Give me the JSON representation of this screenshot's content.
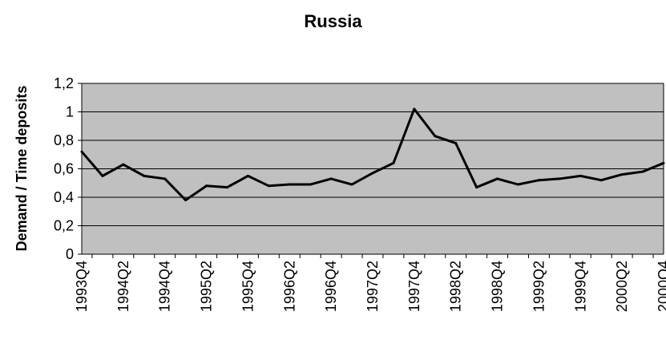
{
  "chart_data": {
    "type": "line",
    "title": "Russia",
    "xlabel": "",
    "ylabel": "Demand / Time deposits",
    "ylim": [
      0,
      1.2
    ],
    "yticks": [
      "0",
      "0,2",
      "0,4",
      "0,6",
      "0,8",
      "1",
      "1,2"
    ],
    "grid": true,
    "legend": "none",
    "colors": {
      "plot_bg": "#c0c0c0",
      "line": "#000000",
      "grid": "#000000"
    },
    "x": [
      "1993Q4",
      "1994Q1",
      "1994Q2",
      "1994Q3",
      "1994Q4",
      "1995Q1",
      "1995Q2",
      "1995Q3",
      "1995Q4",
      "1996Q1",
      "1996Q2",
      "1996Q3",
      "1996Q4",
      "1997Q1",
      "1997Q2",
      "1997Q3",
      "1997Q4",
      "1998Q1",
      "1998Q2",
      "1998Q3",
      "1998Q4",
      "1999Q1",
      "1999Q2",
      "1999Q3",
      "1999Q4",
      "2000Q1",
      "2000Q2",
      "2000Q3",
      "2000Q4"
    ],
    "xtick_labels": [
      "1993Q4",
      "1994Q2",
      "1994Q4",
      "1995Q2",
      "1995Q4",
      "1996Q2",
      "1996Q4",
      "1997Q2",
      "1997Q4",
      "1998Q2",
      "1998Q4",
      "1999Q2",
      "1999Q4",
      "2000Q2",
      "2000Q4"
    ],
    "series": [
      {
        "values": [
          0.72,
          0.55,
          0.63,
          0.55,
          0.53,
          0.38,
          0.48,
          0.47,
          0.55,
          0.48,
          0.49,
          0.49,
          0.53,
          0.49,
          0.57,
          0.64,
          1.02,
          0.83,
          0.78,
          0.47,
          0.53,
          0.49,
          0.52,
          0.53,
          0.55,
          0.52,
          0.56,
          0.58,
          0.64
        ]
      }
    ]
  }
}
